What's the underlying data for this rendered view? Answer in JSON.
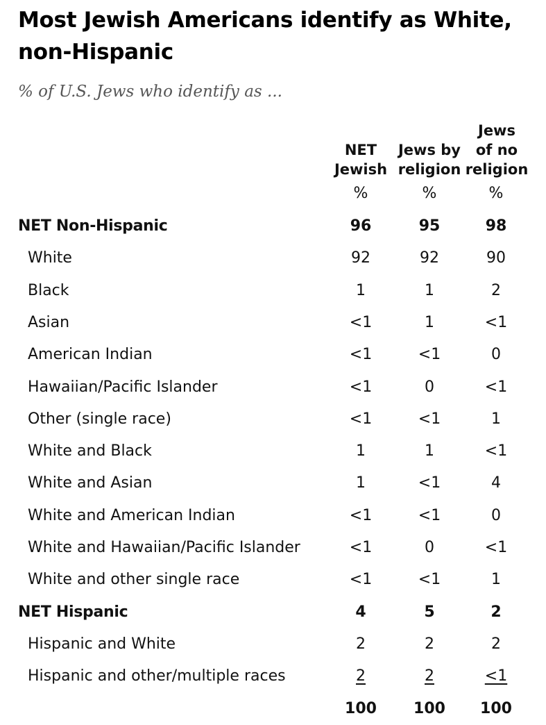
{
  "title": "Most Jewish Americans identify as White, non-Hispanic",
  "subtitle": "% of U.S. Jews who identify as ...",
  "columns": [
    {
      "label": "NET\nJewish",
      "unit": "%"
    },
    {
      "label": "Jews by\nreligion",
      "unit": "%"
    },
    {
      "label": "Jews\nof no\nreligion",
      "unit": "%"
    }
  ],
  "chart_data": {
    "type": "table",
    "title": "Most Jewish Americans identify as White, non-Hispanic",
    "subtitle": "% of U.S. Jews who identify as ...",
    "column_headers": [
      "NET Jewish",
      "Jews by religion",
      "Jews of no religion"
    ],
    "unit_row": [
      "%",
      "%",
      "%"
    ],
    "rows": [
      {
        "label": "NET Non-Hispanic",
        "values": [
          "96",
          "95",
          "98"
        ],
        "net": true
      },
      {
        "label": "White",
        "values": [
          "92",
          "92",
          "90"
        ]
      },
      {
        "label": "Black",
        "values": [
          "1",
          "1",
          "2"
        ]
      },
      {
        "label": "Asian",
        "values": [
          "<1",
          "1",
          "<1"
        ]
      },
      {
        "label": "American Indian",
        "values": [
          "<1",
          "<1",
          "0"
        ]
      },
      {
        "label": "Hawaiian/Pacific Islander",
        "values": [
          "<1",
          "0",
          "<1"
        ]
      },
      {
        "label": "Other (single race)",
        "values": [
          "<1",
          "<1",
          "1"
        ]
      },
      {
        "label": "White and Black",
        "values": [
          "1",
          "1",
          "<1"
        ]
      },
      {
        "label": "White and Asian",
        "values": [
          "1",
          "<1",
          "4"
        ]
      },
      {
        "label": "White and American Indian",
        "values": [
          "<1",
          "<1",
          "0"
        ]
      },
      {
        "label": "White and Hawaiian/Pacific Islander",
        "values": [
          "<1",
          "0",
          "<1"
        ]
      },
      {
        "label": "White and other single race",
        "values": [
          "<1",
          "<1",
          "1"
        ]
      },
      {
        "label": "NET Hispanic",
        "values": [
          "4",
          "5",
          "2"
        ],
        "net": true
      },
      {
        "label": "Hispanic and White",
        "values": [
          "2",
          "2",
          "2"
        ]
      },
      {
        "label": "Hispanic and other/multiple races",
        "values": [
          "2",
          "2",
          "<1"
        ],
        "underline": true
      },
      {
        "label": "",
        "values": [
          "100",
          "100",
          "100"
        ],
        "total": true
      }
    ]
  }
}
